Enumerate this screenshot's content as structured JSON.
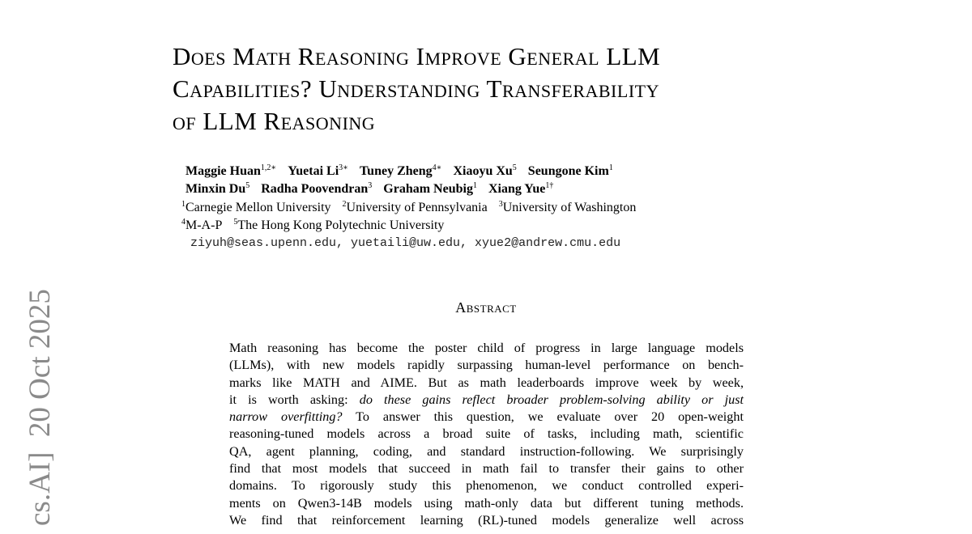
{
  "arxiv_stamp": "cs.AI]  20 Oct 2025",
  "title_lines": [
    "Does Math Reasoning Improve General LLM",
    "Capabilities? Understanding Transferability",
    "of LLM Reasoning"
  ],
  "authors": [
    [
      {
        "name": "Maggie Huan",
        "sup": "1,2∗"
      },
      {
        "name": "Yuetai Li",
        "sup": "3∗"
      },
      {
        "name": "Tuney Zheng",
        "sup": "4∗"
      },
      {
        "name": "Xiaoyu Xu",
        "sup": "5"
      },
      {
        "name": "Seungone Kim",
        "sup": "1"
      }
    ],
    [
      {
        "name": "Minxin Du",
        "sup": "5"
      },
      {
        "name": "Radha Poovendran",
        "sup": "3"
      },
      {
        "name": "Graham Neubig",
        "sup": "1"
      },
      {
        "name": "Xiang Yue",
        "sup": "1†"
      }
    ]
  ],
  "affiliations": [
    [
      {
        "sup": "1",
        "name": "Carnegie Mellon University"
      },
      {
        "sup": "2",
        "name": "University of Pennsylvania"
      },
      {
        "sup": "3",
        "name": "University of Washington"
      }
    ],
    [
      {
        "sup": "4",
        "name": "M-A-P"
      },
      {
        "sup": "5",
        "name": "The Hong Kong Polytechnic University"
      }
    ]
  ],
  "emails": "ziyuh@seas.upenn.edu, yuetaili@uw.edu, xyue2@andrew.cmu.edu",
  "abstract_heading": "Abstract",
  "abstract_lines": [
    {
      "pre": "Math reasoning has become the poster child of progress in large language models"
    },
    {
      "pre": "(LLMs), with new models rapidly surpassing human-level performance on bench-"
    },
    {
      "pre": "marks like MATH and AIME. But as math leaderboards improve week by week,"
    },
    {
      "pre": "it is worth asking: ",
      "it": "do these gains reflect broader problem-solving ability or just"
    },
    {
      "it": "narrow overfitting?",
      "post": "  To answer this question, we evaluate over 20 open-weight"
    },
    {
      "pre": "reasoning-tuned models across a broad suite of tasks, including math, scientific"
    },
    {
      "pre": "QA, agent planning, coding, and standard instruction-following. We surprisingly"
    },
    {
      "pre": "find that most models that succeed in math fail to transfer their gains to other"
    },
    {
      "pre": "domains.  To rigorously study this phenomenon, we conduct controlled experi-"
    },
    {
      "pre": "ments on Qwen3-14B models using math-only data but different tuning methods."
    },
    {
      "pre": "We find that reinforcement learning (RL)-tuned models generalize well across"
    }
  ]
}
